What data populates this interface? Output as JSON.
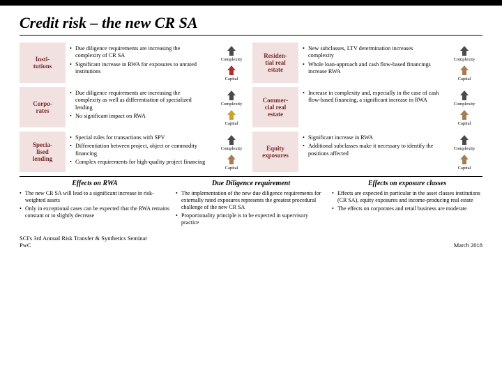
{
  "title": "Credit risk – the new CR SA",
  "rows": [
    {
      "left": {
        "label": "Insti-\ntutions",
        "bullets": [
          "Due diligence requirements are increasing the complexity of CR SA",
          "Significant increase in RWA for exposures to unrated institutions"
        ],
        "arrows": {
          "complexity": "up-dark",
          "capital": "up-red"
        }
      },
      "right": {
        "label": "Residen-\ntial real\nestate",
        "bullets": [
          "New subclasses, LTV determination increases complexity",
          "Whole loan-approach and cash flow-based financings increase RWA"
        ],
        "arrows": {
          "complexity": "up-dark",
          "capital": "up-brown"
        }
      }
    },
    {
      "left": {
        "label": "Corpo-\nrates",
        "bullets": [
          "Due diligence requirements are increasing the complexity as well as differentiation of specialized lending",
          "No significant impact on RWA"
        ],
        "arrows": {
          "complexity": "up-dark",
          "capital": "up-yellow"
        }
      },
      "right": {
        "label": "Commer-\ncial real\nestate",
        "bullets": [
          "Increase in complexity and, especially in the case of cash flow-based financing, a significant increase in RWA"
        ],
        "arrows": {
          "complexity": "up-dark",
          "capital": "up-brown"
        }
      }
    },
    {
      "left": {
        "label": "Specia-\nlised\nlending",
        "bullets": [
          "Special rules for transactions with SPV",
          "Differentiation between project, object or commodity financing",
          "Complex requirements for high-quality project financing"
        ],
        "arrows": {
          "complexity": "up-dark",
          "capital": "up-brown"
        }
      },
      "right": {
        "label": "Equity\nexposures",
        "bullets": [
          "Significant increase in RWA",
          "Additional subclasses make it necessary to identify the positions affected"
        ],
        "arrows": {
          "complexity": "up-dark",
          "capital": "up-brown"
        }
      }
    }
  ],
  "icon_labels": {
    "complexity": "Complexity",
    "capital": "Capital"
  },
  "effects": [
    {
      "heading": "Effects on RWA",
      "bullets": [
        "The new CR SA will lead to a significant increase in risk-weighted assets",
        "Only in exceptional cases can be expected that the RWA remains constant or to slightly decrease"
      ]
    },
    {
      "heading": "Due Diligence requirement",
      "bullets": [
        "The implementation of the new due diligence requirements for externally rated exposures represents the greatest procedural challenge of the new CR SA",
        "Proportionality principle is to be expected in supervisory practice"
      ]
    },
    {
      "heading": "Effects on exposure classes",
      "bullets": [
        "Effects are expected in particular in the asset classes institutions (CR SA), equity exposures and income-producing real estate",
        "The effects on corporates and retail business are moderate"
      ]
    }
  ],
  "footer": {
    "event": "SCI's 3rd Annual Risk Transfer & Synthetics Seminar",
    "brand": "PwC",
    "date": "March 2018"
  },
  "colors": {
    "label_bg": "#f2e1e1",
    "label_fg": "#7b2a2a",
    "arrow_dark": "#4a4a4a",
    "arrow_brown": "#a67c52",
    "arrow_yellow": "#c9a227",
    "arrow_red": "#b03030"
  }
}
